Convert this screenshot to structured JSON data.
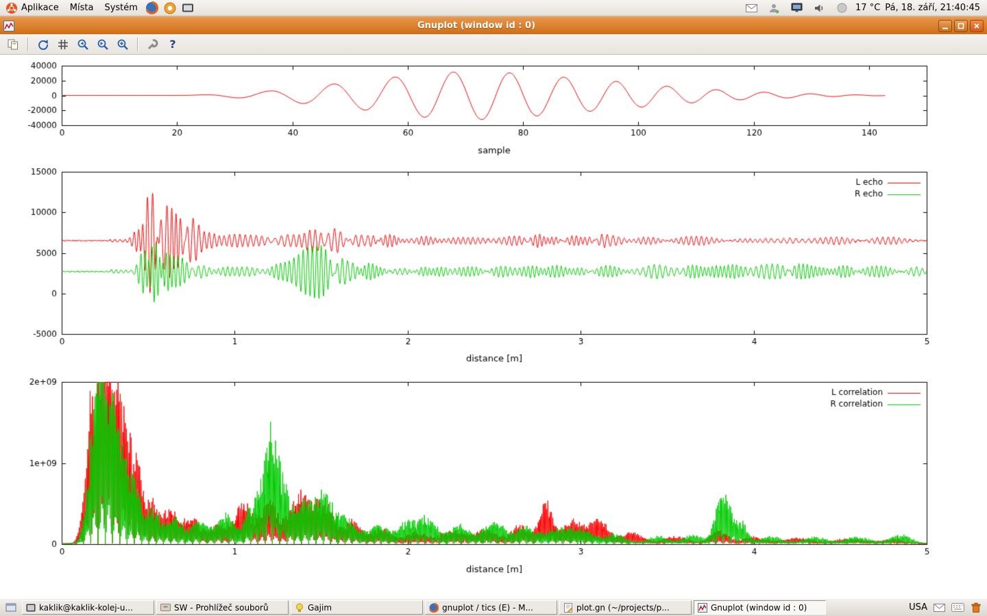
{
  "colors": {
    "accent_orange": "#d97828",
    "series_red": "#ff0000",
    "series_green": "#00cc00"
  },
  "desktop": {
    "top_panel": {
      "menus": [
        "Aplikace",
        "Místa",
        "Systém"
      ],
      "temperature": "17 °C",
      "clock": "Pá, 18. září, 21:40:45"
    },
    "taskbar": {
      "items": [
        {
          "label": "kaklik@kaklik-kolej-u...",
          "active": false
        },
        {
          "label": "SW - Prohlížeč souborů",
          "active": false
        },
        {
          "label": "Gajim",
          "active": false
        },
        {
          "label": "gnuplot / tics (E) - M...",
          "active": false
        },
        {
          "label": "plot.gn (~/projects/p...",
          "active": false
        },
        {
          "label": "Gnuplot (window id : 0)",
          "active": true
        }
      ],
      "keyboard_layout": "USA"
    }
  },
  "window": {
    "title": "Gnuplot (window id : 0)",
    "toolbar_icons": [
      "copy",
      "replot",
      "grid",
      "zoom-previous",
      "zoom-next",
      "autoscale",
      "settings",
      "help"
    ],
    "help_glyph": "?"
  },
  "chart_data": [
    {
      "id": "pulse",
      "type": "line",
      "title": "",
      "xlabel": "sample",
      "ylabel": "",
      "xlim": [
        0,
        150
      ],
      "ylim": [
        -40000,
        40000
      ],
      "xticks": [
        0,
        20,
        40,
        60,
        80,
        100,
        120,
        140
      ],
      "xtick_labels": [
        "0",
        "20",
        "40",
        "60",
        "80",
        "100",
        "120",
        "140"
      ],
      "yticks": [
        -40000,
        -20000,
        0,
        20000,
        40000
      ],
      "ytick_labels": [
        "-40000",
        "-20000",
        "0",
        "20000",
        "40000"
      ],
      "grid": false,
      "legend": {
        "show": false
      },
      "series": [
        {
          "name": "",
          "color": "#ff0000",
          "generator": "chirp",
          "seed": 3,
          "chirp": {
            "x_start": 22,
            "x_end": 143,
            "f0": 0.082,
            "k": 0.0002,
            "phase0": 0.4,
            "envelope_keypoints": [
              [
                0,
                0
              ],
              [
                20,
                0
              ],
              [
                24,
                800
              ],
              [
                28,
                2000
              ],
              [
                32,
                4000
              ],
              [
                36,
                6000
              ],
              [
                40,
                9000
              ],
              [
                44,
                13000
              ],
              [
                48,
                16000
              ],
              [
                52,
                19000
              ],
              [
                56,
                23000
              ],
              [
                60,
                27000
              ],
              [
                64,
                30000
              ],
              [
                68,
                31500
              ],
              [
                72,
                32500
              ],
              [
                76,
                31500
              ],
              [
                80,
                29000
              ],
              [
                84,
                26500
              ],
              [
                88,
                24000
              ],
              [
                92,
                21000
              ],
              [
                96,
                19000
              ],
              [
                100,
                16000
              ],
              [
                104,
                13000
              ],
              [
                108,
                10500
              ],
              [
                112,
                8500
              ],
              [
                116,
                6500
              ],
              [
                120,
                5000
              ],
              [
                124,
                3800
              ],
              [
                128,
                2700
              ],
              [
                132,
                1800
              ],
              [
                136,
                1100
              ],
              [
                140,
                600
              ],
              [
                143,
                200
              ]
            ]
          }
        }
      ]
    },
    {
      "id": "echo",
      "type": "line",
      "title": "",
      "xlabel": "distance [m]",
      "ylabel": "",
      "xlim": [
        0,
        5
      ],
      "ylim": [
        -5000,
        15000
      ],
      "xticks": [
        0,
        1,
        2,
        3,
        4,
        5
      ],
      "xtick_labels": [
        "0",
        "1",
        "2",
        "3",
        "4",
        "5"
      ],
      "yticks": [
        -5000,
        0,
        5000,
        10000,
        15000
      ],
      "ytick_labels": [
        "-5000",
        "0",
        "5000",
        "10000",
        "15000"
      ],
      "grid": false,
      "legend": {
        "show": true,
        "position": "top-right"
      },
      "series": [
        {
          "name": "L echo",
          "color": "#ff0000",
          "generator": "echo",
          "seed": 7,
          "echo": {
            "baseline": 6500,
            "ripple": 220,
            "noise": 60,
            "period": 0.03,
            "bursts": [
              [
                0.45,
                0.03,
                2000
              ],
              [
                0.52,
                0.035,
                6800
              ],
              [
                0.58,
                0.03,
                5200
              ],
              [
                0.65,
                0.04,
                3500
              ],
              [
                0.75,
                0.04,
                2500
              ],
              [
                0.85,
                0.05,
                1000
              ],
              [
                1.0,
                0.06,
                600
              ],
              [
                1.15,
                0.06,
                650
              ],
              [
                1.3,
                0.06,
                700
              ],
              [
                1.45,
                0.06,
                1400
              ],
              [
                1.58,
                0.05,
                1700
              ],
              [
                1.72,
                0.06,
                900
              ],
              [
                1.9,
                0.08,
                550
              ],
              [
                2.1,
                0.08,
                450
              ],
              [
                2.35,
                0.1,
                400
              ],
              [
                2.6,
                0.08,
                450
              ],
              [
                2.78,
                0.06,
                650
              ],
              [
                3.0,
                0.08,
                500
              ],
              [
                3.15,
                0.07,
                700
              ],
              [
                3.4,
                0.08,
                450
              ],
              [
                3.65,
                0.1,
                380
              ],
              [
                3.95,
                0.1,
                350
              ],
              [
                4.2,
                0.1,
                320
              ],
              [
                4.5,
                0.12,
                300
              ],
              [
                4.8,
                0.1,
                280
              ]
            ]
          }
        },
        {
          "name": "R echo",
          "color": "#00cc00",
          "generator": "echo",
          "seed": 13,
          "echo": {
            "baseline": 2700,
            "ripple": 260,
            "noise": 60,
            "period": 0.028,
            "bursts": [
              [
                0.48,
                0.03,
                2600
              ],
              [
                0.54,
                0.035,
                4600
              ],
              [
                0.6,
                0.03,
                3400
              ],
              [
                0.68,
                0.04,
                1800
              ],
              [
                0.8,
                0.05,
                700
              ],
              [
                0.95,
                0.06,
                350
              ],
              [
                1.1,
                0.06,
                350
              ],
              [
                1.28,
                0.06,
                900
              ],
              [
                1.4,
                0.05,
                2400
              ],
              [
                1.5,
                0.05,
                2900
              ],
              [
                1.62,
                0.05,
                1700
              ],
              [
                1.78,
                0.06,
                900
              ],
              [
                1.95,
                0.07,
                600
              ],
              [
                2.15,
                0.08,
                550
              ],
              [
                2.35,
                0.08,
                650
              ],
              [
                2.55,
                0.07,
                750
              ],
              [
                2.75,
                0.08,
                600
              ],
              [
                2.95,
                0.08,
                550
              ],
              [
                3.15,
                0.08,
                650
              ],
              [
                3.45,
                0.09,
                850
              ],
              [
                3.7,
                0.07,
                800
              ],
              [
                3.85,
                0.06,
                950
              ],
              [
                4.1,
                0.08,
                1000
              ],
              [
                4.3,
                0.07,
                950
              ],
              [
                4.5,
                0.08,
                600
              ],
              [
                4.75,
                0.08,
                500
              ],
              [
                4.95,
                0.04,
                550
              ]
            ]
          }
        }
      ]
    },
    {
      "id": "corr",
      "type": "line",
      "title": "",
      "xlabel": "distance [m]",
      "ylabel": "",
      "xlim": [
        0,
        5
      ],
      "ylim": [
        0,
        2000000000.0
      ],
      "xticks": [
        0,
        1,
        2,
        3,
        4,
        5
      ],
      "xtick_labels": [
        "0",
        "1",
        "2",
        "3",
        "4",
        "5"
      ],
      "yticks": [
        0,
        1000000000.0,
        2000000000.0
      ],
      "ytick_labels": [
        "0",
        "1e+09",
        "2e+09"
      ],
      "grid": false,
      "legend": {
        "show": true,
        "position": "top-right"
      },
      "series": [
        {
          "name": "L correlation",
          "color": "#ff0000",
          "generator": "correlation",
          "seed": 21,
          "correlation": {
            "spike_period": 0.014,
            "floor": 12000000.0,
            "bursts": [
              [
                0.17,
                0.035,
                1550000000.0
              ],
              [
                0.24,
                0.04,
                2100000000.0
              ],
              [
                0.3,
                0.04,
                1800000000.0
              ],
              [
                0.37,
                0.035,
                1350000000.0
              ],
              [
                0.44,
                0.03,
                900000000.0
              ],
              [
                0.52,
                0.03,
                500000000.0
              ],
              [
                0.62,
                0.05,
                450000000.0
              ],
              [
                0.75,
                0.05,
                350000000.0
              ],
              [
                0.9,
                0.05,
                250000000.0
              ],
              [
                1.05,
                0.05,
                550000000.0
              ],
              [
                1.2,
                0.05,
                600000000.0
              ],
              [
                1.38,
                0.06,
                680000000.0
              ],
              [
                1.52,
                0.05,
                550000000.0
              ],
              [
                1.68,
                0.05,
                300000000.0
              ],
              [
                1.85,
                0.06,
                200000000.0
              ],
              [
                2.05,
                0.06,
                150000000.0
              ],
              [
                2.25,
                0.07,
                170000000.0
              ],
              [
                2.45,
                0.07,
                200000000.0
              ],
              [
                2.65,
                0.05,
                250000000.0
              ],
              [
                2.8,
                0.04,
                550000000.0
              ],
              [
                2.95,
                0.05,
                300000000.0
              ],
              [
                3.1,
                0.06,
                320000000.0
              ],
              [
                3.3,
                0.06,
                150000000.0
              ],
              [
                3.55,
                0.07,
                100000000.0
              ],
              [
                3.8,
                0.05,
                180000000.0
              ],
              [
                4.0,
                0.06,
                100000000.0
              ],
              [
                4.25,
                0.08,
                80000000.0
              ],
              [
                4.55,
                0.08,
                70000000.0
              ],
              [
                4.8,
                0.07,
                60000000.0
              ]
            ]
          }
        },
        {
          "name": "R correlation",
          "color": "#00cc00",
          "generator": "correlation",
          "seed": 29,
          "correlation": {
            "spike_period": 0.014,
            "floor": 12000000.0,
            "bursts": [
              [
                0.2,
                0.04,
                1900000000.0
              ],
              [
                0.27,
                0.04,
                1800000000.0
              ],
              [
                0.34,
                0.035,
                1200000000.0
              ],
              [
                0.42,
                0.03,
                800000000.0
              ],
              [
                0.52,
                0.04,
                500000000.0
              ],
              [
                0.65,
                0.05,
                350000000.0
              ],
              [
                0.8,
                0.05,
                300000000.0
              ],
              [
                0.95,
                0.05,
                400000000.0
              ],
              [
                1.1,
                0.04,
                500000000.0
              ],
              [
                1.2,
                0.04,
                1400000000.0
              ],
              [
                1.28,
                0.04,
                700000000.0
              ],
              [
                1.4,
                0.05,
                550000000.0
              ],
              [
                1.52,
                0.05,
                650000000.0
              ],
              [
                1.65,
                0.05,
                350000000.0
              ],
              [
                1.82,
                0.06,
                250000000.0
              ],
              [
                2.0,
                0.06,
                280000000.0
              ],
              [
                2.12,
                0.05,
                320000000.0
              ],
              [
                2.3,
                0.06,
                250000000.0
              ],
              [
                2.5,
                0.06,
                300000000.0
              ],
              [
                2.68,
                0.06,
                220000000.0
              ],
              [
                2.85,
                0.06,
                180000000.0
              ],
              [
                3.0,
                0.07,
                200000000.0
              ],
              [
                3.2,
                0.06,
                120000000.0
              ],
              [
                3.45,
                0.06,
                100000000.0
              ],
              [
                3.65,
                0.05,
                120000000.0
              ],
              [
                3.82,
                0.04,
                680000000.0
              ],
              [
                3.92,
                0.04,
                300000000.0
              ],
              [
                4.1,
                0.06,
                100000000.0
              ],
              [
                4.35,
                0.07,
                90000000.0
              ],
              [
                4.6,
                0.07,
                90000000.0
              ],
              [
                4.85,
                0.06,
                120000000.0
              ]
            ]
          }
        }
      ]
    }
  ]
}
